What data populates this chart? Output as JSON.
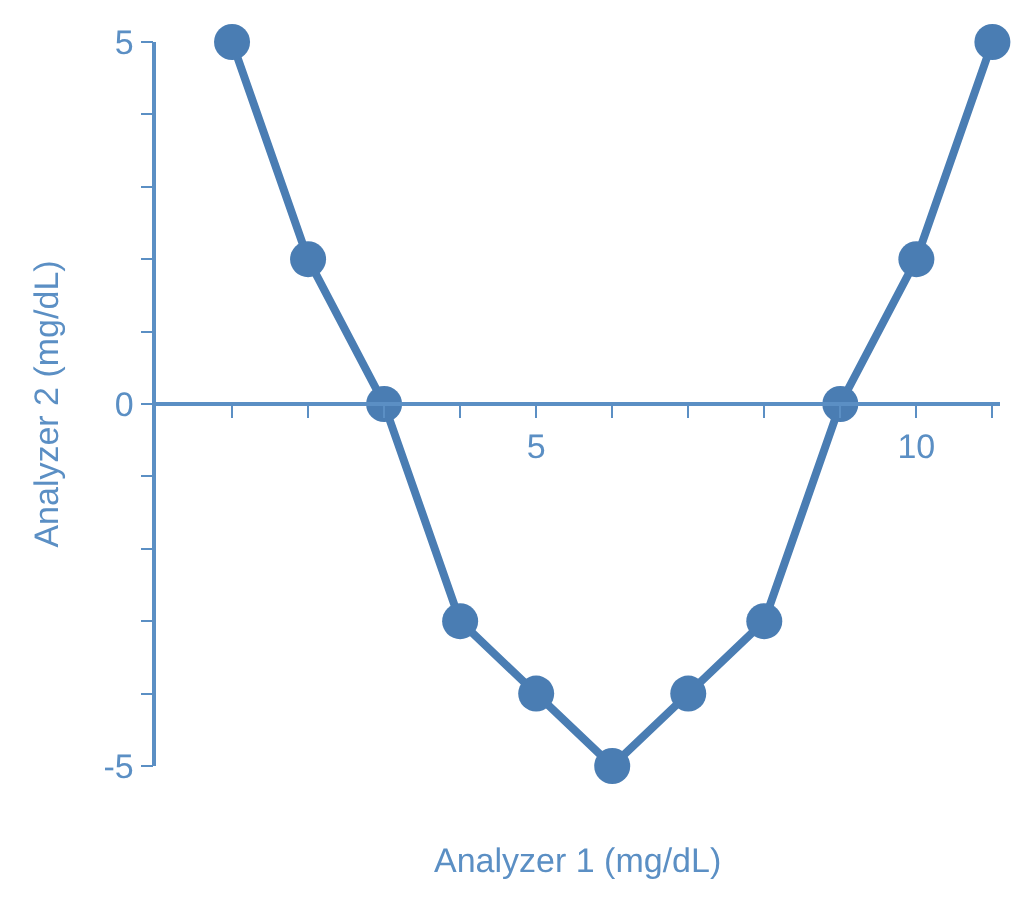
{
  "chart_data": {
    "type": "line",
    "xlabel": "Analyzer 1 (mg/dL)",
    "ylabel": "Analyzer 2 (mg/dL)",
    "x": [
      1,
      2,
      3,
      4,
      5,
      6,
      7,
      8,
      9,
      10,
      11
    ],
    "series": [
      {
        "color": "#4a7db3",
        "values": [
          5,
          2,
          0,
          -3,
          -4,
          -5,
          -4,
          -3,
          0,
          2,
          5
        ]
      }
    ],
    "marker": "circle",
    "line_style": "solid",
    "xlim": [
      0,
      11.1
    ],
    "ylim": [
      -5,
      5
    ],
    "xticks": [
      {
        "value": 1,
        "label": null
      },
      {
        "value": 2,
        "label": null
      },
      {
        "value": 3,
        "label": null
      },
      {
        "value": 4,
        "label": null
      },
      5,
      {
        "value": 6,
        "label": null
      },
      {
        "value": 7,
        "label": null
      },
      {
        "value": 8,
        "label": null
      },
      {
        "value": 9,
        "label": null
      },
      10,
      {
        "value": 11,
        "label": null
      }
    ],
    "yticks": [
      -5,
      {
        "value": -4,
        "label": null
      },
      {
        "value": -3,
        "label": null
      },
      {
        "value": -2,
        "label": null
      },
      {
        "value": -1,
        "label": null
      },
      0,
      {
        "value": 1,
        "label": null
      },
      {
        "value": 2,
        "label": null
      },
      {
        "value": 3,
        "label": null
      },
      {
        "value": 4,
        "label": null
      },
      5
    ]
  }
}
